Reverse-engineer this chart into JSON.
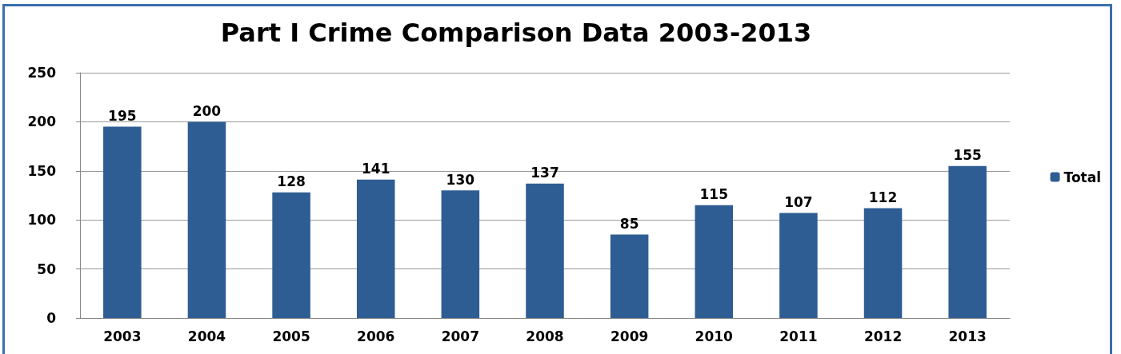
{
  "chart_data": {
    "type": "bar",
    "title": "Part I Crime Comparison Data 2003-2013",
    "categories": [
      "2003",
      "2004",
      "2005",
      "2006",
      "2007",
      "2008",
      "2009",
      "2010",
      "2011",
      "2012",
      "2013"
    ],
    "series": [
      {
        "name": "Total",
        "color": "#2e5d93",
        "values": [
          195,
          200,
          128,
          141,
          130,
          137,
          85,
          115,
          107,
          112,
          155
        ]
      }
    ],
    "ylim": [
      0,
      250
    ],
    "yticks": [
      0,
      50,
      100,
      150,
      200,
      250
    ],
    "grid": "y",
    "legend": "right",
    "data_labels": true
  }
}
